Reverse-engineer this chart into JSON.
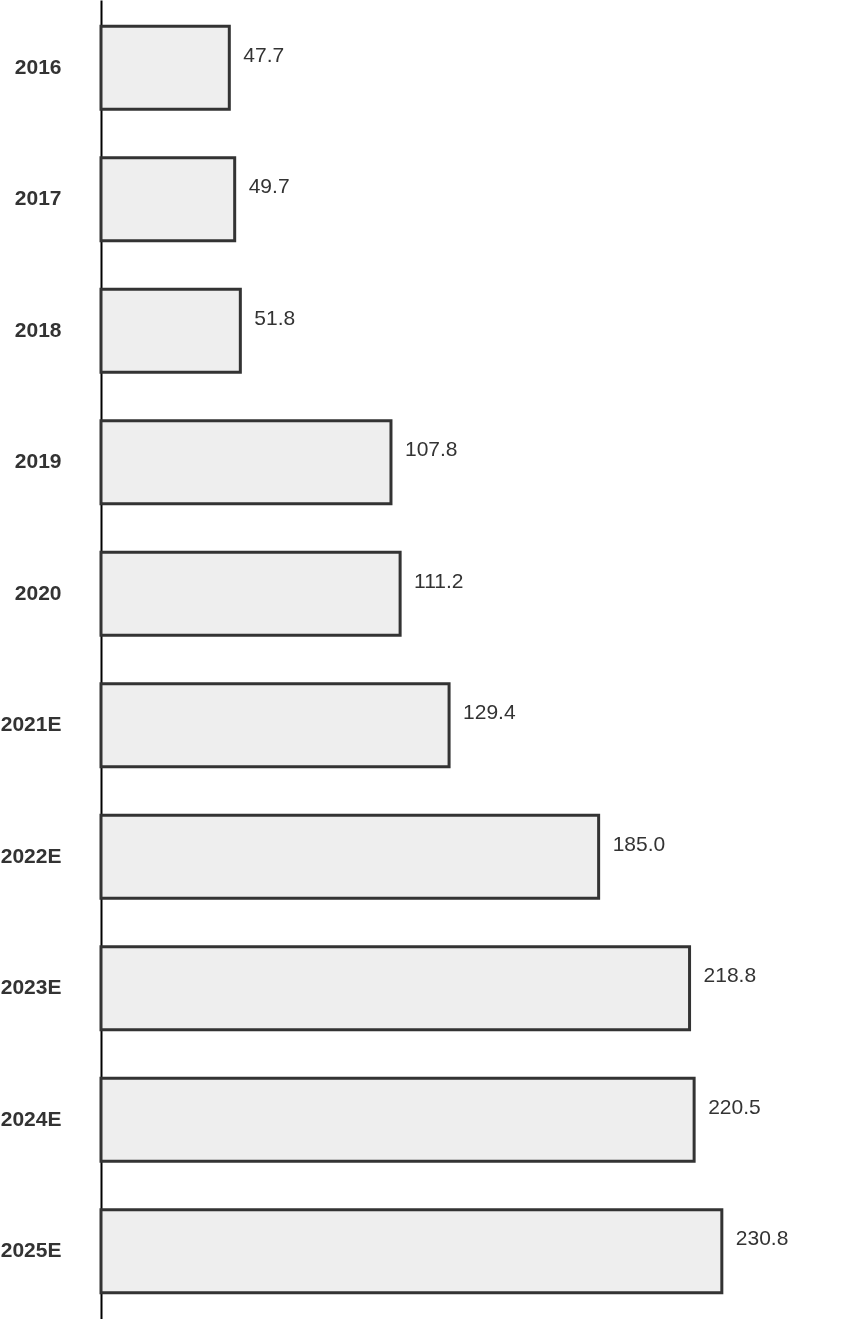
{
  "chart_data": {
    "type": "bar",
    "orientation": "horizontal",
    "categories": [
      "2016",
      "2017",
      "2018",
      "2019",
      "2020",
      "2021E",
      "2022E",
      "2023E",
      "2024E",
      "2025E"
    ],
    "values": [
      47.7,
      49.7,
      51.8,
      107.8,
      111.2,
      129.4,
      185.0,
      218.8,
      220.5,
      230.8
    ],
    "value_labels": [
      "47.7",
      "49.7",
      "51.8",
      "107.8",
      "111.2",
      "129.4",
      "185.0",
      "218.8",
      "220.5",
      "230.8"
    ],
    "color": "#eeeeee",
    "grid": false
  }
}
